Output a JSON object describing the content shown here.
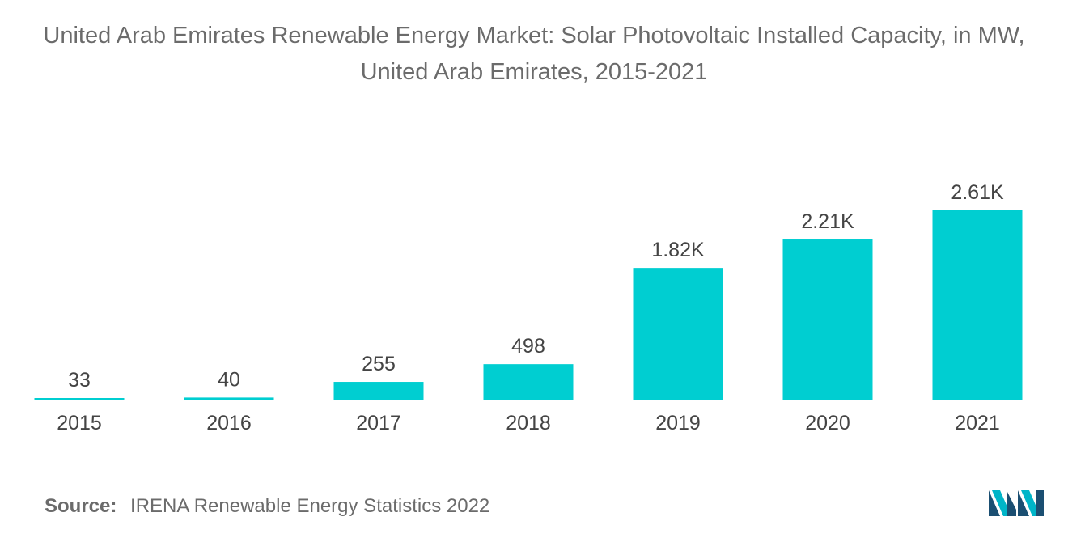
{
  "title": "United Arab Emirates Renewable Energy Market: Solar Photovoltaic Installed Capacity, in MW, United Arab Emirates, 2015-2021",
  "source": {
    "label": "Source:",
    "text": "IRENA Renewable Energy Statistics 2022"
  },
  "logo": {
    "icon": "mordor-intelligence-logo-icon"
  },
  "colors": {
    "bar": "#00CED1",
    "text": "#444444",
    "title": "#6b6b6b"
  },
  "chart_data": {
    "type": "bar",
    "title": "United Arab Emirates Renewable Energy Market: Solar Photovoltaic Installed Capacity, in MW, United Arab Emirates, 2015-2021",
    "xlabel": "",
    "ylabel": "",
    "categories": [
      "2015",
      "2016",
      "2017",
      "2018",
      "2019",
      "2020",
      "2021"
    ],
    "values": [
      33,
      40,
      255,
      498,
      1820,
      2210,
      2610
    ],
    "data_labels": [
      "33",
      "40",
      "255",
      "498",
      "1.82K",
      "2.21K",
      "2.61K"
    ],
    "ylim": [
      0,
      2610
    ],
    "grid": false,
    "legend": "none"
  }
}
